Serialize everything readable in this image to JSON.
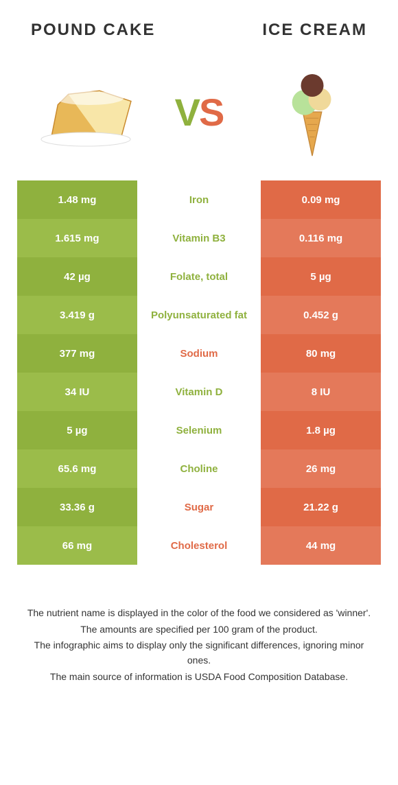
{
  "header": {
    "left_title": "POUND CAKE",
    "right_title": "ICE CREAM",
    "vs_v": "V",
    "vs_s": "S"
  },
  "colors": {
    "left_primary": "#8fb13e",
    "left_alt": "#9bbc4a",
    "right_primary": "#e06a47",
    "right_alt": "#e4795a",
    "mid_left_text": "#8fb13e",
    "mid_right_text": "#e06a47"
  },
  "rows": [
    {
      "left": "1.48 mg",
      "mid": "Iron",
      "right": "0.09 mg",
      "winner": "left"
    },
    {
      "left": "1.615 mg",
      "mid": "Vitamin B3",
      "right": "0.116 mg",
      "winner": "left"
    },
    {
      "left": "42 µg",
      "mid": "Folate, total",
      "right": "5 µg",
      "winner": "left"
    },
    {
      "left": "3.419 g",
      "mid": "Polyunsaturated fat",
      "right": "0.452 g",
      "winner": "left"
    },
    {
      "left": "377 mg",
      "mid": "Sodium",
      "right": "80 mg",
      "winner": "right"
    },
    {
      "left": "34 IU",
      "mid": "Vitamin D",
      "right": "8 IU",
      "winner": "left"
    },
    {
      "left": "5 µg",
      "mid": "Selenium",
      "right": "1.8 µg",
      "winner": "left"
    },
    {
      "left": "65.6 mg",
      "mid": "Choline",
      "right": "26 mg",
      "winner": "left"
    },
    {
      "left": "33.36 g",
      "mid": "Sugar",
      "right": "21.22 g",
      "winner": "right"
    },
    {
      "left": "66 mg",
      "mid": "Cholesterol",
      "right": "44 mg",
      "winner": "right"
    }
  ],
  "footer": {
    "line1": "The nutrient name is displayed in the color of the food we considered as 'winner'.",
    "line2": "The amounts are specified per 100 gram of the product.",
    "line3": "The infographic aims to display only the significant differences, ignoring minor ones.",
    "line4": "The main source of information is USDA Food Composition Database."
  },
  "icons": {
    "pound_cake": "pound-cake-illustration",
    "ice_cream": "ice-cream-cone-illustration"
  }
}
